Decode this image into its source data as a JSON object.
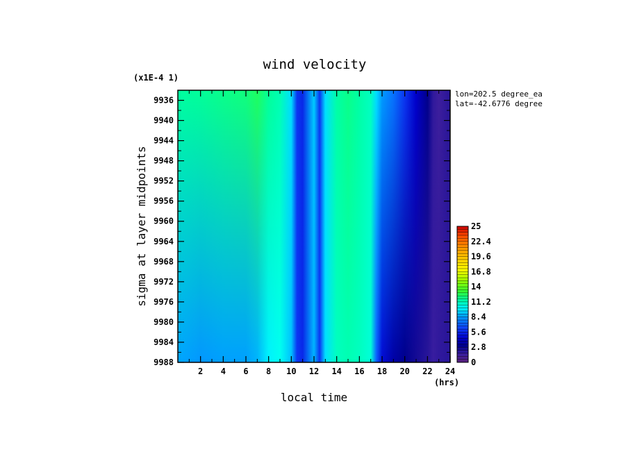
{
  "chart_data": {
    "type": "heatmap",
    "title": "wind velocity",
    "xlabel": "local time",
    "x_unit": "(hrs)",
    "ylabel": "sigma at layer midpoints",
    "y_scale_note": "(x1E-4 1)",
    "xlim": [
      0,
      24
    ],
    "ylim": [
      9988,
      9934
    ],
    "x_ticks": [
      "2",
      "4",
      "6",
      "8",
      "10",
      "12",
      "14",
      "16",
      "18",
      "20",
      "22",
      "24"
    ],
    "y_ticks": [
      "9936",
      "9940",
      "9944",
      "9948",
      "9952",
      "9956",
      "9960",
      "9964",
      "9968",
      "9972",
      "9976",
      "9980",
      "9984",
      "9988"
    ],
    "annotations": [
      "lon=202.5 degree_ea",
      "lat=-42.6776 degree"
    ],
    "colorbar": {
      "min": 0,
      "max": 25,
      "tick_labels": [
        "25",
        "22.4",
        "19.6",
        "16.8",
        "14",
        "11.2",
        "8.4",
        "5.6",
        "2.8",
        "0"
      ]
    },
    "time_profile_top": {
      "x": [
        0,
        2,
        4,
        6,
        7,
        8,
        9,
        10,
        10.5,
        11,
        12,
        12.5,
        13,
        14,
        15,
        16,
        17,
        17.5,
        18,
        19,
        20,
        21,
        22,
        22.5,
        23,
        24
      ],
      "values": [
        11.5,
        11.6,
        11.8,
        12.0,
        12.4,
        11.6,
        11.2,
        9.5,
        6.0,
        5.6,
        9.2,
        6.0,
        9.5,
        11.4,
        11.8,
        11.4,
        11.0,
        9.5,
        8.4,
        7.5,
        6.0,
        4.5,
        3.0,
        1.8,
        1.4,
        2.0
      ]
    },
    "time_profile_bottom": {
      "x": [
        0,
        2,
        4,
        6,
        7,
        8,
        9,
        10,
        10.5,
        11,
        12,
        12.5,
        13,
        14,
        15,
        16,
        17,
        17.5,
        18,
        19,
        20,
        21,
        22,
        22.5,
        23,
        24
      ],
      "values": [
        8.6,
        8.3,
        8.5,
        8.5,
        8.8,
        9.8,
        10.2,
        9.0,
        6.0,
        5.6,
        8.8,
        6.0,
        9.5,
        11.0,
        11.2,
        11.0,
        10.6,
        7.0,
        4.8,
        3.6,
        3.0,
        2.5,
        2.0,
        1.6,
        1.8,
        2.0
      ]
    }
  }
}
